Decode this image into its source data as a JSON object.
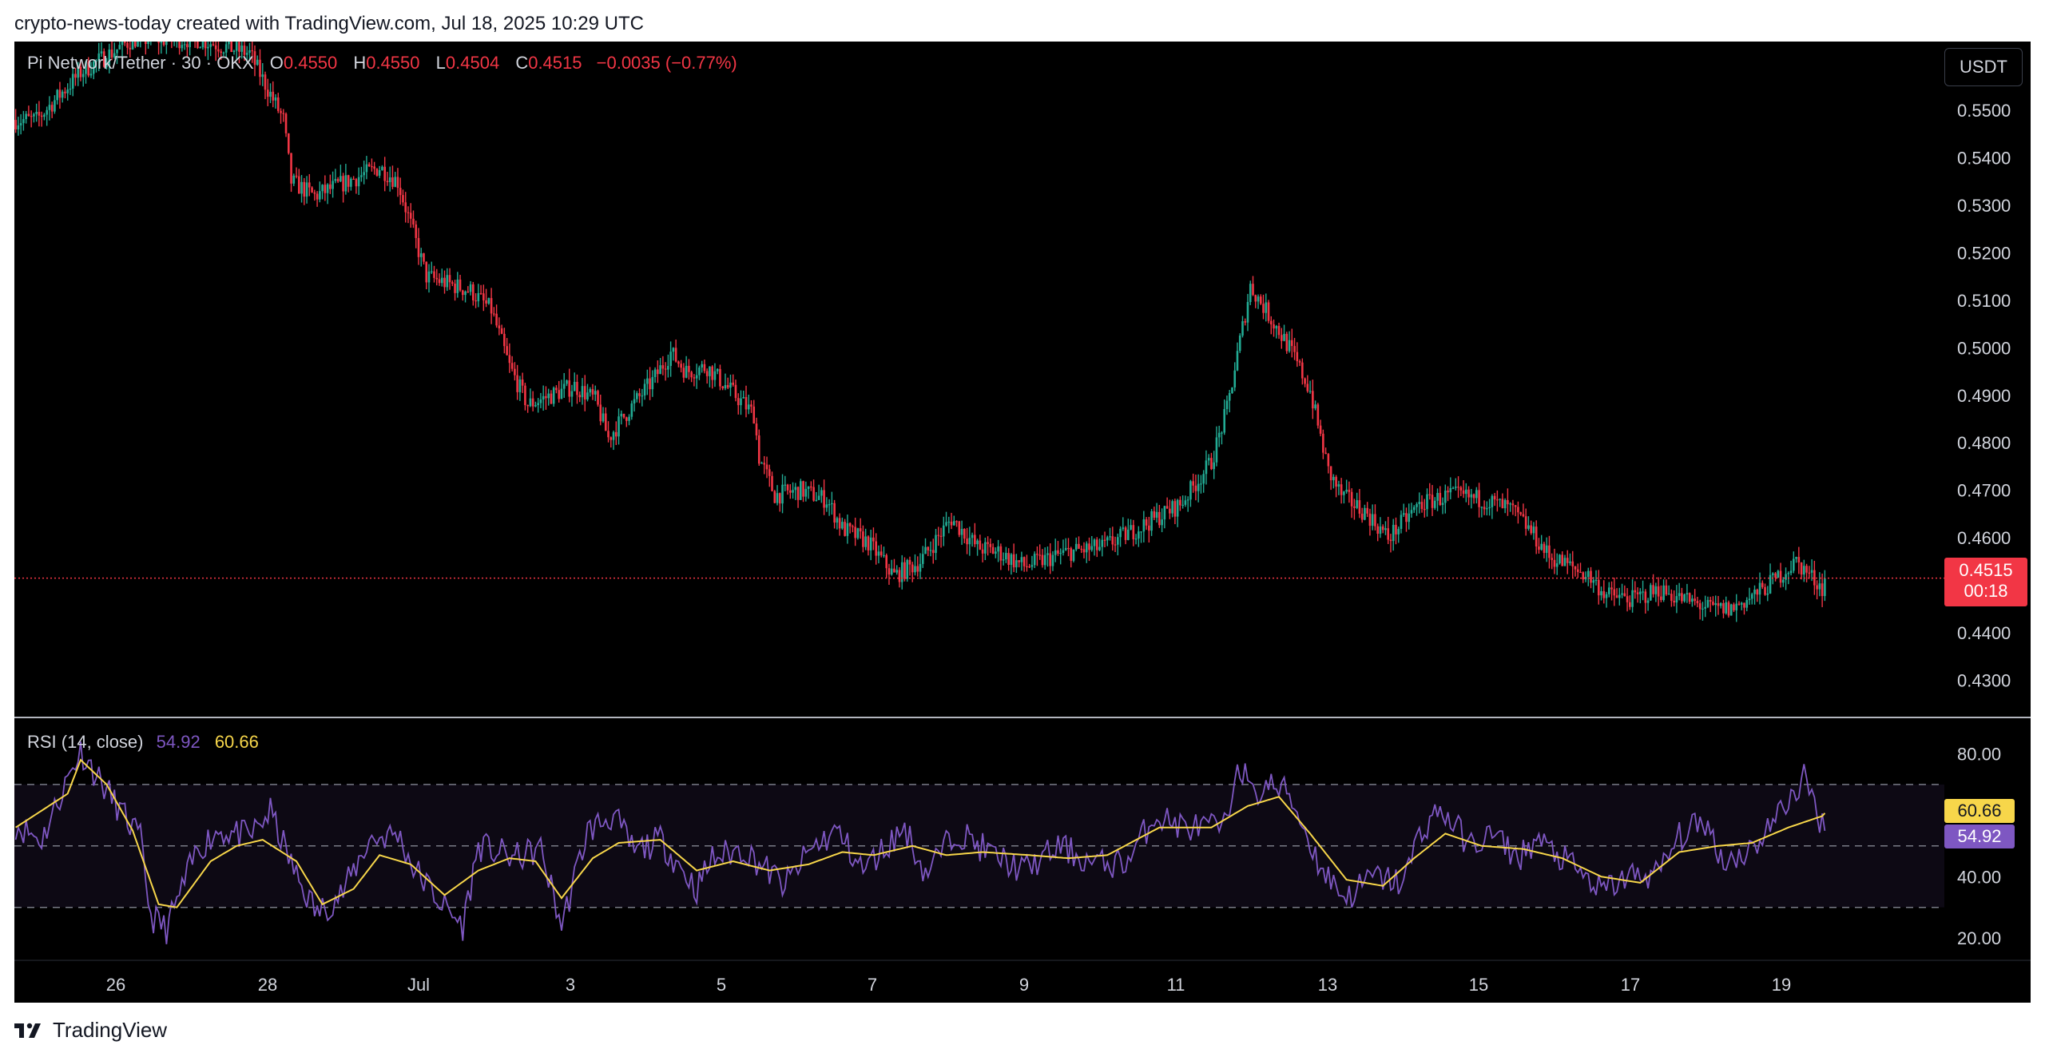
{
  "caption": "crypto-news-today created with TradingView.com, Jul 18, 2025 10:29 UTC",
  "legend": {
    "symbol": "Pi Network/Tether · 30 · OKX",
    "open_label": "O",
    "open": "0.4550",
    "high_label": "H",
    "high": "0.4550",
    "low_label": "L",
    "low": "0.4504",
    "close_label": "C",
    "close": "0.4515",
    "change": "−0.0035 (−0.77%)"
  },
  "currency_button": "USDT",
  "price_tag": {
    "price": "0.4515",
    "countdown": "00:18"
  },
  "rsi_legend": {
    "label": "RSI (14, close)",
    "rsi_value": "54.92",
    "ma_value": "60.66"
  },
  "rsi_tags": {
    "ma": "60.66",
    "rsi": "54.92"
  },
  "brand": "TradingView",
  "colors": {
    "up": "#22ab94",
    "down": "#f23645",
    "rsi": "#7e57c2",
    "rsi_ma": "#f7d64a",
    "background": "#000000"
  },
  "chart_data": {
    "type": "candlestick",
    "price_axis": {
      "range": [
        0.4225,
        0.5645
      ],
      "ticks": [
        "0.5500",
        "0.5400",
        "0.5300",
        "0.5200",
        "0.5100",
        "0.5000",
        "0.4900",
        "0.4800",
        "0.4700",
        "0.4600",
        "0.4400",
        "0.4300"
      ]
    },
    "last_price": 0.4515,
    "x_axis": {
      "labels": [
        "26",
        "28",
        "Jul",
        "3",
        "5",
        "7",
        "9",
        "11",
        "13",
        "15",
        "17",
        "19"
      ]
    },
    "price_path": [
      [
        0,
        0.548
      ],
      [
        8,
        0.548
      ],
      [
        25,
        0.558
      ],
      [
        45,
        0.565
      ],
      [
        70,
        0.565
      ],
      [
        90,
        0.562
      ],
      [
        103,
        0.548
      ],
      [
        106,
        0.535
      ],
      [
        115,
        0.532
      ],
      [
        140,
        0.538
      ],
      [
        147,
        0.535
      ],
      [
        158,
        0.515
      ],
      [
        175,
        0.512
      ],
      [
        183,
        0.508
      ],
      [
        190,
        0.496
      ],
      [
        197,
        0.488
      ],
      [
        215,
        0.492
      ],
      [
        223,
        0.489
      ],
      [
        228,
        0.481
      ],
      [
        236,
        0.487
      ],
      [
        245,
        0.493
      ],
      [
        252,
        0.499
      ],
      [
        258,
        0.495
      ],
      [
        266,
        0.496
      ],
      [
        275,
        0.491
      ],
      [
        284,
        0.486
      ],
      [
        286,
        0.477
      ],
      [
        292,
        0.469
      ],
      [
        302,
        0.47
      ],
      [
        312,
        0.468
      ],
      [
        318,
        0.462
      ],
      [
        328,
        0.459
      ],
      [
        338,
        0.452
      ],
      [
        348,
        0.455
      ],
      [
        360,
        0.464
      ],
      [
        370,
        0.458
      ],
      [
        378,
        0.457
      ],
      [
        388,
        0.454
      ],
      [
        405,
        0.457
      ],
      [
        418,
        0.458
      ],
      [
        435,
        0.463
      ],
      [
        448,
        0.467
      ],
      [
        460,
        0.476
      ],
      [
        466,
        0.487
      ],
      [
        475,
        0.513
      ],
      [
        482,
        0.507
      ],
      [
        490,
        0.5
      ],
      [
        498,
        0.491
      ],
      [
        505,
        0.474
      ],
      [
        510,
        0.469
      ],
      [
        520,
        0.465
      ],
      [
        528,
        0.46
      ],
      [
        540,
        0.467
      ],
      [
        552,
        0.469
      ],
      [
        565,
        0.468
      ],
      [
        575,
        0.466
      ],
      [
        582,
        0.462
      ],
      [
        590,
        0.456
      ],
      [
        598,
        0.454
      ],
      [
        605,
        0.452
      ],
      [
        612,
        0.448
      ],
      [
        622,
        0.447
      ],
      [
        632,
        0.449
      ],
      [
        642,
        0.447
      ],
      [
        652,
        0.445
      ],
      [
        660,
        0.445
      ],
      [
        672,
        0.449
      ],
      [
        685,
        0.455
      ],
      [
        696,
        0.449
      ]
    ],
    "rsi": {
      "range": [
        13.8,
        91.3
      ],
      "ticks": [
        "80.00",
        "40.00",
        "20.00"
      ],
      "bands": [
        70,
        50,
        30
      ],
      "last_rsi": 54.92,
      "last_ma": 60.66,
      "points": [
        [
          0,
          57
        ],
        [
          10,
          52
        ],
        [
          20,
          72
        ],
        [
          25,
          81
        ],
        [
          35,
          68
        ],
        [
          48,
          52
        ],
        [
          52,
          27
        ],
        [
          58,
          23
        ],
        [
          70,
          49
        ],
        [
          78,
          55
        ],
        [
          90,
          53
        ],
        [
          98,
          61
        ],
        [
          108,
          40
        ],
        [
          116,
          28
        ],
        [
          126,
          35
        ],
        [
          136,
          52
        ],
        [
          147,
          54
        ],
        [
          153,
          43
        ],
        [
          165,
          30
        ],
        [
          172,
          24
        ],
        [
          178,
          50
        ],
        [
          192,
          46
        ],
        [
          202,
          49
        ],
        [
          210,
          24
        ],
        [
          220,
          55
        ],
        [
          230,
          60
        ],
        [
          238,
          48
        ],
        [
          248,
          52
        ],
        [
          262,
          36
        ],
        [
          268,
          46
        ],
        [
          280,
          49
        ],
        [
          296,
          37
        ],
        [
          306,
          49
        ],
        [
          316,
          55
        ],
        [
          326,
          42
        ],
        [
          342,
          56
        ],
        [
          350,
          41
        ],
        [
          362,
          55
        ],
        [
          376,
          47
        ],
        [
          388,
          42
        ],
        [
          402,
          50
        ],
        [
          412,
          45
        ],
        [
          418,
          44
        ],
        [
          428,
          45
        ],
        [
          438,
          60
        ],
        [
          450,
          56
        ],
        [
          466,
          56
        ],
        [
          470,
          79
        ],
        [
          476,
          66
        ],
        [
          482,
          70
        ],
        [
          490,
          67
        ],
        [
          502,
          43
        ],
        [
          512,
          33
        ],
        [
          522,
          40
        ],
        [
          534,
          38
        ],
        [
          540,
          54
        ],
        [
          548,
          62
        ],
        [
          560,
          50
        ],
        [
          568,
          54
        ],
        [
          578,
          46
        ],
        [
          585,
          52
        ],
        [
          598,
          44
        ],
        [
          610,
          35
        ],
        [
          620,
          40
        ],
        [
          632,
          41
        ],
        [
          640,
          53
        ],
        [
          650,
          58
        ],
        [
          657,
          45
        ],
        [
          668,
          49
        ],
        [
          678,
          60
        ],
        [
          688,
          72
        ],
        [
          696,
          55
        ]
      ],
      "ma_points": [
        [
          0,
          56
        ],
        [
          20,
          67
        ],
        [
          25,
          78
        ],
        [
          35,
          70
        ],
        [
          45,
          55
        ],
        [
          55,
          31
        ],
        [
          62,
          30
        ],
        [
          75,
          45
        ],
        [
          85,
          50
        ],
        [
          95,
          52
        ],
        [
          108,
          45
        ],
        [
          118,
          31
        ],
        [
          130,
          36
        ],
        [
          140,
          47
        ],
        [
          152,
          44
        ],
        [
          165,
          34
        ],
        [
          178,
          42
        ],
        [
          190,
          46
        ],
        [
          200,
          45
        ],
        [
          210,
          33
        ],
        [
          222,
          46
        ],
        [
          232,
          51
        ],
        [
          248,
          52
        ],
        [
          262,
          42
        ],
        [
          276,
          45
        ],
        [
          290,
          42
        ],
        [
          305,
          44
        ],
        [
          318,
          48
        ],
        [
          330,
          47
        ],
        [
          345,
          50
        ],
        [
          358,
          47
        ],
        [
          372,
          48
        ],
        [
          390,
          47
        ],
        [
          405,
          46
        ],
        [
          420,
          47
        ],
        [
          440,
          56
        ],
        [
          460,
          56
        ],
        [
          474,
          63
        ],
        [
          486,
          66
        ],
        [
          498,
          54
        ],
        [
          512,
          39
        ],
        [
          526,
          37
        ],
        [
          538,
          46
        ],
        [
          550,
          54
        ],
        [
          564,
          50
        ],
        [
          580,
          49
        ],
        [
          595,
          46
        ],
        [
          610,
          40
        ],
        [
          625,
          38
        ],
        [
          640,
          48
        ],
        [
          655,
          50
        ],
        [
          668,
          51
        ],
        [
          682,
          56
        ],
        [
          696,
          60
        ]
      ]
    }
  }
}
